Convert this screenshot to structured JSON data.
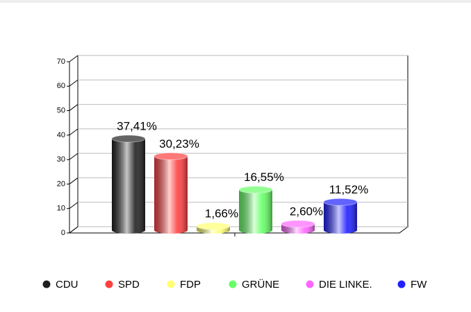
{
  "chart_data": {
    "type": "bar",
    "categories": [
      "CDU",
      "SPD",
      "FDP",
      "GRÜNE",
      "DIE LINKE.",
      "FW"
    ],
    "values": [
      37.41,
      30.23,
      1.66,
      16.55,
      2.6,
      11.52
    ],
    "value_labels": [
      "37,41%",
      "30,23%",
      "1,66%",
      "16,55%",
      "2,60%",
      "11,52%"
    ],
    "colors": [
      "#202020",
      "#ff4040",
      "#ffff70",
      "#66ff66",
      "#ff66ff",
      "#2020ff"
    ],
    "ylim": [
      0,
      70
    ],
    "yticks": [
      0,
      10,
      20,
      30,
      40,
      50,
      60,
      70
    ],
    "grid": true
  }
}
